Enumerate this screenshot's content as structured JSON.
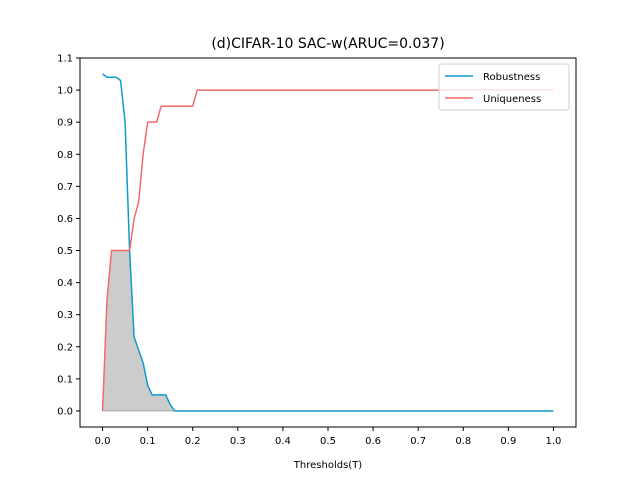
{
  "chart_data": {
    "type": "line",
    "title": "(d)CIFAR-10 SAC-w(ARUC=0.037)",
    "xlabel": "Thresholds(T)",
    "ylabel": "",
    "xlim": [
      -0.05,
      1.05
    ],
    "ylim": [
      -0.05,
      1.1
    ],
    "xticks": [
      "0.0",
      "0.1",
      "0.2",
      "0.3",
      "0.4",
      "0.5",
      "0.6",
      "0.7",
      "0.8",
      "0.9",
      "1.0"
    ],
    "yticks": [
      "0.0",
      "0.1",
      "0.2",
      "0.3",
      "0.4",
      "0.5",
      "0.6",
      "0.7",
      "0.8",
      "0.9",
      "1.0",
      "1.1"
    ],
    "grid": false,
    "legend": "top-right",
    "fill_between": "min(Robustness, Uniqueness)",
    "fill_color": "#cccccc",
    "series": [
      {
        "name": "Robustness",
        "color": "#0f9bc9",
        "x": [
          0,
          0.01,
          0.02,
          0.03,
          0.04,
          0.05,
          0.06,
          0.07,
          0.08,
          0.09,
          0.1,
          0.11,
          0.12,
          0.13,
          0.14,
          0.15,
          0.16,
          0.2,
          0.5,
          1.0
        ],
        "y": [
          1.05,
          1.04,
          1.04,
          1.04,
          1.03,
          0.9,
          0.5,
          0.23,
          0.19,
          0.15,
          0.08,
          0.05,
          0.05,
          0.05,
          0.05,
          0.02,
          0.0,
          0.0,
          0.0,
          0.0
        ]
      },
      {
        "name": "Uniqueness",
        "color": "#f26b6b",
        "x": [
          0,
          0.01,
          0.02,
          0.03,
          0.04,
          0.05,
          0.06,
          0.07,
          0.08,
          0.09,
          0.1,
          0.11,
          0.12,
          0.13,
          0.14,
          0.15,
          0.16,
          0.17,
          0.18,
          0.19,
          0.2,
          0.21,
          0.22,
          0.5,
          1.0
        ],
        "y": [
          0.0,
          0.35,
          0.5,
          0.5,
          0.5,
          0.5,
          0.5,
          0.6,
          0.65,
          0.8,
          0.9,
          0.9,
          0.9,
          0.95,
          0.95,
          0.95,
          0.95,
          0.95,
          0.95,
          0.95,
          0.95,
          1.0,
          1.0,
          1.0,
          1.0
        ]
      }
    ]
  }
}
